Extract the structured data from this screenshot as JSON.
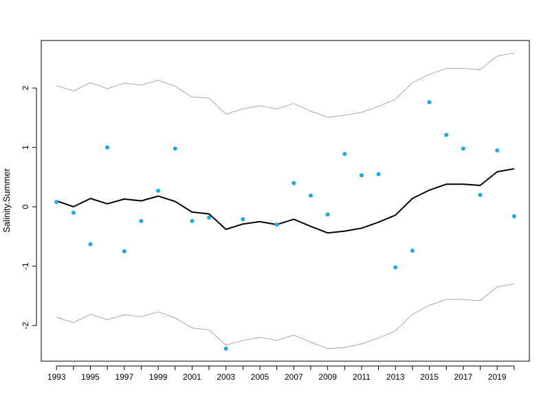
{
  "chart_data": {
    "type": "line",
    "title": "",
    "xlabel": "",
    "ylabel": "Salinity.Summer",
    "xlim": [
      1992.1,
      2020.9
    ],
    "ylim": [
      -2.6,
      2.8
    ],
    "x_ticks": [
      1993,
      1995,
      1997,
      1999,
      2001,
      2003,
      2005,
      2007,
      2009,
      2011,
      2013,
      2015,
      2017,
      2019
    ],
    "y_ticks": [
      -2,
      -1,
      0,
      1,
      2
    ],
    "x_tick_labels": [
      "1993",
      "1995",
      "1997",
      "1999",
      "2001",
      "2003",
      "2005",
      "2007",
      "2009",
      "2011",
      "2013",
      "2015",
      "2017",
      "2019"
    ],
    "y_tick_labels": [
      "-2",
      "-1",
      "0",
      "1",
      "2"
    ],
    "grid": false,
    "colors": {
      "points": "#1aa7ec",
      "mean": "#000000",
      "bounds": "#aaaaaa"
    },
    "x": [
      1993,
      1994,
      1995,
      1996,
      1997,
      1998,
      1999,
      2000,
      2001,
      2002,
      2003,
      2004,
      2005,
      2006,
      2007,
      2008,
      2009,
      2010,
      2011,
      2012,
      2013,
      2014,
      2015,
      2016,
      2017,
      2018,
      2019,
      2020
    ],
    "series": [
      {
        "kind": "points",
        "values": [
          0.08,
          -0.1,
          -0.63,
          1.0,
          -0.75,
          -0.24,
          0.27,
          0.98,
          -0.24,
          -0.18,
          -2.39,
          -0.21,
          null,
          -0.3,
          0.4,
          0.19,
          -0.13,
          0.89,
          0.53,
          0.55,
          -1.02,
          -0.74,
          1.76,
          1.21,
          0.98,
          0.2,
          0.95,
          -0.16
        ]
      },
      {
        "kind": "mean",
        "values": [
          0.1,
          0.0,
          0.14,
          0.05,
          0.13,
          0.1,
          0.18,
          0.09,
          -0.09,
          -0.12,
          -0.38,
          -0.29,
          -0.25,
          -0.3,
          -0.21,
          -0.33,
          -0.44,
          -0.41,
          -0.36,
          -0.26,
          -0.14,
          0.14,
          0.28,
          0.38,
          0.38,
          0.36,
          0.59,
          0.64
        ]
      },
      {
        "kind": "upper",
        "values": [
          2.04,
          1.95,
          2.09,
          1.99,
          2.08,
          2.05,
          2.13,
          2.03,
          1.85,
          1.83,
          1.56,
          1.65,
          1.7,
          1.65,
          1.74,
          1.61,
          1.51,
          1.54,
          1.59,
          1.69,
          1.81,
          2.09,
          2.23,
          2.33,
          2.33,
          2.31,
          2.54,
          2.59
        ]
      },
      {
        "kind": "lower",
        "values": [
          -1.86,
          -1.95,
          -1.81,
          -1.9,
          -1.82,
          -1.85,
          -1.77,
          -1.87,
          -2.04,
          -2.07,
          -2.33,
          -2.25,
          -2.2,
          -2.25,
          -2.16,
          -2.28,
          -2.39,
          -2.37,
          -2.31,
          -2.21,
          -2.09,
          -1.81,
          -1.66,
          -1.56,
          -1.56,
          -1.58,
          -1.35,
          -1.3
        ]
      }
    ]
  }
}
